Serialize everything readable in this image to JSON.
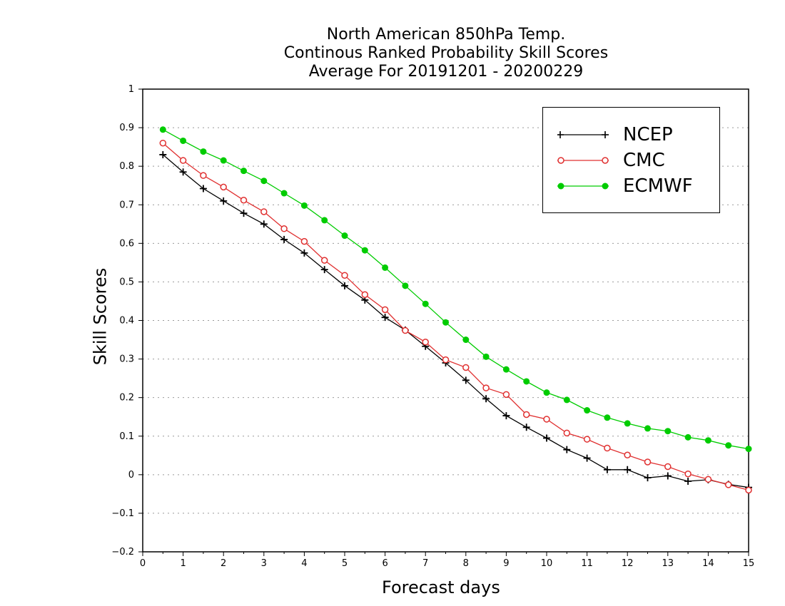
{
  "title_lines": [
    "North American 850hPa Temp.",
    "Continous Ranked Probability Skill Scores",
    "Average For 20191201 - 20200229"
  ],
  "chart_data": {
    "type": "line",
    "xlabel": "Forecast days",
    "ylabel": "Skill Scores",
    "xlim": [
      0,
      15
    ],
    "ylim": [
      -0.2,
      1
    ],
    "xticks": [
      0,
      1,
      2,
      3,
      4,
      5,
      6,
      7,
      8,
      9,
      10,
      11,
      12,
      13,
      14,
      15
    ],
    "yticks": [
      -0.2,
      -0.1,
      0,
      0.1,
      0.2,
      0.3,
      0.4,
      0.5,
      0.6,
      0.7,
      0.8,
      0.9,
      1
    ],
    "ytick_labels": [
      "−0.2",
      "−0.1",
      "0",
      "0.1",
      "0.2",
      "0.3",
      "0.4",
      "0.5",
      "0.6",
      "0.7",
      "0.8",
      "0.9",
      "1"
    ],
    "grid": "horizontal dotted",
    "legend_position": "top-right",
    "x": [
      0.5,
      1,
      1.5,
      2,
      2.5,
      3,
      3.5,
      4,
      4.5,
      5,
      5.5,
      6,
      6.5,
      7,
      7.5,
      8,
      8.5,
      9,
      9.5,
      10,
      10.5,
      11,
      11.5,
      12,
      12.5,
      13,
      13.5,
      14,
      14.5,
      15
    ],
    "series": [
      {
        "name": "NCEP",
        "color": "#000000",
        "marker": "plus",
        "values": [
          0.83,
          0.785,
          0.742,
          0.71,
          0.678,
          0.65,
          0.61,
          0.575,
          0.532,
          0.49,
          0.453,
          0.408,
          0.375,
          0.333,
          0.29,
          0.245,
          0.197,
          0.153,
          0.123,
          0.095,
          0.065,
          0.043,
          0.013,
          0.013,
          -0.008,
          -0.003,
          -0.017,
          -0.013,
          -0.025,
          -0.033
        ]
      },
      {
        "name": "CMC",
        "color": "#e03030",
        "marker": "open-circle",
        "values": [
          0.86,
          0.815,
          0.776,
          0.746,
          0.712,
          0.682,
          0.638,
          0.605,
          0.556,
          0.517,
          0.467,
          0.428,
          0.374,
          0.344,
          0.298,
          0.278,
          0.225,
          0.208,
          0.156,
          0.144,
          0.108,
          0.092,
          0.069,
          0.051,
          0.033,
          0.021,
          0.002,
          -0.012,
          -0.026,
          -0.04
        ]
      },
      {
        "name": "ECMWF",
        "color": "#00cc00",
        "marker": "filled-circle",
        "values": [
          0.895,
          0.866,
          0.838,
          0.815,
          0.788,
          0.762,
          0.73,
          0.698,
          0.66,
          0.62,
          0.582,
          0.537,
          0.49,
          0.443,
          0.395,
          0.35,
          0.306,
          0.273,
          0.242,
          0.213,
          0.194,
          0.167,
          0.148,
          0.133,
          0.12,
          0.113,
          0.097,
          0.089,
          0.076,
          0.067
        ]
      }
    ]
  }
}
